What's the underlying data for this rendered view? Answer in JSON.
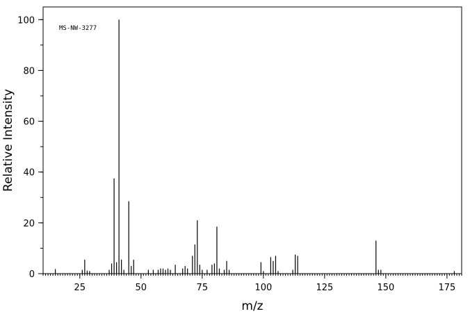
{
  "chart_data": {
    "type": "bar",
    "title": "MS-NW-3277",
    "xlabel": "m/z",
    "ylabel": "Relative Intensity",
    "xlim": [
      10,
      181
    ],
    "ylim": [
      0,
      105
    ],
    "x_ticks": [
      25,
      50,
      75,
      100,
      125,
      150,
      175
    ],
    "y_ticks": [
      0,
      20,
      40,
      60,
      80,
      100
    ],
    "grid": false,
    "legend": "none",
    "peaks": [
      [
        15,
        1.8
      ],
      [
        26,
        1.5
      ],
      [
        27,
        5.5
      ],
      [
        28,
        1.2
      ],
      [
        29,
        1.0
      ],
      [
        37,
        1.5
      ],
      [
        38,
        4.0
      ],
      [
        39,
        37.5
      ],
      [
        40,
        4.5
      ],
      [
        41,
        100
      ],
      [
        42,
        5.5
      ],
      [
        43,
        1.5
      ],
      [
        45,
        28.5
      ],
      [
        46,
        3.0
      ],
      [
        47,
        5.5
      ],
      [
        53,
        1.5
      ],
      [
        55,
        1.5
      ],
      [
        57,
        1.5
      ],
      [
        58,
        2.0
      ],
      [
        59,
        2.0
      ],
      [
        60,
        1.5
      ],
      [
        61,
        2.0
      ],
      [
        62,
        1.5
      ],
      [
        64,
        3.5
      ],
      [
        67,
        2.0
      ],
      [
        68,
        3.0
      ],
      [
        69,
        2.0
      ],
      [
        71,
        7.0
      ],
      [
        72,
        11.5
      ],
      [
        73,
        21.0
      ],
      [
        74,
        3.5
      ],
      [
        75,
        1.5
      ],
      [
        77,
        1.5
      ],
      [
        79,
        3.5
      ],
      [
        80,
        4.0
      ],
      [
        81,
        18.5
      ],
      [
        82,
        2.0
      ],
      [
        84,
        1.5
      ],
      [
        85,
        5.0
      ],
      [
        86,
        1.5
      ],
      [
        99,
        4.5
      ],
      [
        100,
        1.0
      ],
      [
        103,
        6.5
      ],
      [
        104,
        5.0
      ],
      [
        105,
        7.0
      ],
      [
        106,
        1.0
      ],
      [
        112,
        1.5
      ],
      [
        113,
        7.5
      ],
      [
        114,
        7.0
      ],
      [
        146,
        13.0
      ],
      [
        147,
        1.5
      ],
      [
        148,
        1.5
      ],
      [
        178,
        1.0
      ]
    ]
  }
}
